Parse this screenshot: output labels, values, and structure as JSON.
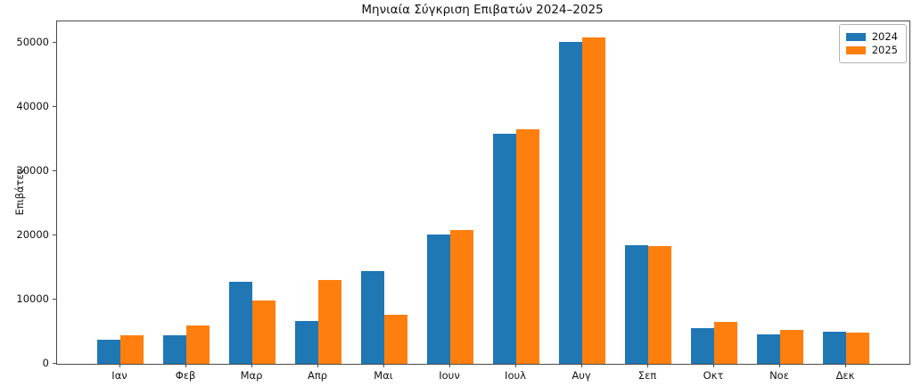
{
  "chart_data": {
    "type": "bar",
    "title": "Μηνιαία Σύγκριση Επιβατών 2024–2025",
    "xlabel": "",
    "ylabel": "Επιβάτες",
    "categories": [
      "Ιαν",
      "Φεβ",
      "Μαρ",
      "Απρ",
      "Μαι",
      "Ιουν",
      "Ιουλ",
      "Αυγ",
      "Σεπ",
      "Οκτ",
      "Νοε",
      "Δεκ"
    ],
    "series": [
      {
        "name": "2024",
        "color": "#1f77b4",
        "values": [
          3800,
          4400,
          12800,
          6700,
          14500,
          20200,
          35900,
          50200,
          18500,
          5600,
          4600,
          5000
        ]
      },
      {
        "name": "2025",
        "color": "#ff7f0e",
        "values": [
          4500,
          6000,
          9900,
          13100,
          7600,
          20900,
          36600,
          50900,
          18400,
          6600,
          5300,
          4900
        ]
      }
    ],
    "ylim": [
      0,
      53450
    ],
    "yticks": [
      0,
      10000,
      20000,
      30000,
      40000,
      50000
    ],
    "legend_position": "upper right",
    "grid": false,
    "background_color": "#ffffff",
    "spine_color": "#4a4a4a"
  }
}
